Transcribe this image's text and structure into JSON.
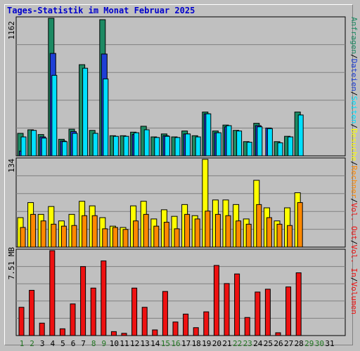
{
  "title": "Tages-Statistik im Monat Februar 2025",
  "colors": {
    "anfragen": "#1D8A63",
    "dateien": "#1F3FD6",
    "seiten": "#00E0FF",
    "besuche": "#FFFF00",
    "rechner": "#FF8800",
    "volumen": "#EE1111",
    "weekend": "#227722",
    "weekday": "#000000",
    "legend_sep": "#000000",
    "grid": "#808080",
    "plot_bg": "#C0C0C0"
  },
  "chart_data": [
    {
      "type": "bar",
      "panel": "top",
      "ytick_label": "1162",
      "ymax": 1162,
      "categories": [
        "1",
        "2",
        "3",
        "4",
        "5",
        "6",
        "7",
        "8",
        "9",
        "10",
        "11",
        "12",
        "13",
        "14",
        "15",
        "16",
        "17",
        "18",
        "19",
        "20",
        "21",
        "22",
        "23",
        "24",
        "25",
        "26",
        "27",
        "28",
        "29",
        "30",
        "31"
      ],
      "series": [
        {
          "name": "Anfragen",
          "values": [
            190,
            220,
            180,
            1162,
            140,
            225,
            770,
            215,
            1150,
            170,
            170,
            200,
            250,
            160,
            185,
            160,
            210,
            170,
            370,
            210,
            260,
            215,
            120,
            275,
            0,
            120,
            165,
            370,
            0,
            0,
            0
          ]
        },
        {
          "name": "Dateien",
          "values": [
            40,
            0,
            160,
            865,
            125,
            205,
            0,
            0,
            860,
            0,
            0,
            180,
            0,
            0,
            170,
            0,
            185,
            0,
            355,
            195,
            245,
            0,
            0,
            255,
            235,
            0,
            0,
            0,
            0,
            0,
            0
          ]
        },
        {
          "name": "Seiten",
          "values": [
            160,
            215,
            150,
            680,
            120,
            190,
            740,
            190,
            650,
            165,
            165,
            195,
            220,
            155,
            165,
            155,
            185,
            160,
            355,
            195,
            255,
            210,
            115,
            245,
            230,
            110,
            160,
            345,
            0,
            0,
            0
          ]
        }
      ]
    },
    {
      "type": "bar",
      "panel": "middle",
      "ytick_label": "134",
      "ymax": 134,
      "series": [
        {
          "name": "Besuche",
          "values": [
            45,
            68,
            50,
            62,
            40,
            50,
            70,
            63,
            45,
            32,
            30,
            63,
            70,
            43,
            57,
            47,
            65,
            48,
            134,
            72,
            72,
            65,
            43,
            102,
            60,
            40,
            60,
            83,
            0,
            0,
            0
          ]
        },
        {
          "name": "Rechner",
          "values": [
            30,
            50,
            40,
            35,
            32,
            33,
            48,
            48,
            28,
            30,
            27,
            40,
            50,
            32,
            38,
            28,
            50,
            43,
            55,
            50,
            48,
            40,
            35,
            65,
            45,
            35,
            33,
            68,
            0,
            0,
            0
          ]
        }
      ]
    },
    {
      "type": "bar",
      "panel": "bottom",
      "ytick_label": "7.51 MB",
      "ymax": 7.51,
      "series": [
        {
          "name": "Volumen",
          "values": [
            2.5,
            4.0,
            1.1,
            7.51,
            0.6,
            2.8,
            6.1,
            4.2,
            6.6,
            0.35,
            0.2,
            4.2,
            2.5,
            0.5,
            3.9,
            1.2,
            1.9,
            0.7,
            2.1,
            6.2,
            4.6,
            5.45,
            1.6,
            3.85,
            4.1,
            0.25,
            4.3,
            5.55,
            0,
            0,
            0
          ]
        }
      ]
    }
  ],
  "legend_right": [
    {
      "key": "anfragen",
      "label": "Anfragen"
    },
    {
      "key": "dateien",
      "label": "Dateien"
    },
    {
      "key": "seiten",
      "label": "Seiten"
    },
    {
      "key": "besuche",
      "label": "Besuche"
    },
    {
      "key": "rechner",
      "label": "Rechner"
    },
    {
      "key": "volumen",
      "label": "Vol. Out"
    },
    {
      "key": "volumen",
      "label": "Vol. In"
    },
    {
      "key": "volumen",
      "label": "Volumen"
    }
  ],
  "weekend_days": [
    "1",
    "2",
    "8",
    "9",
    "15",
    "16",
    "22",
    "23",
    "29",
    "30"
  ]
}
